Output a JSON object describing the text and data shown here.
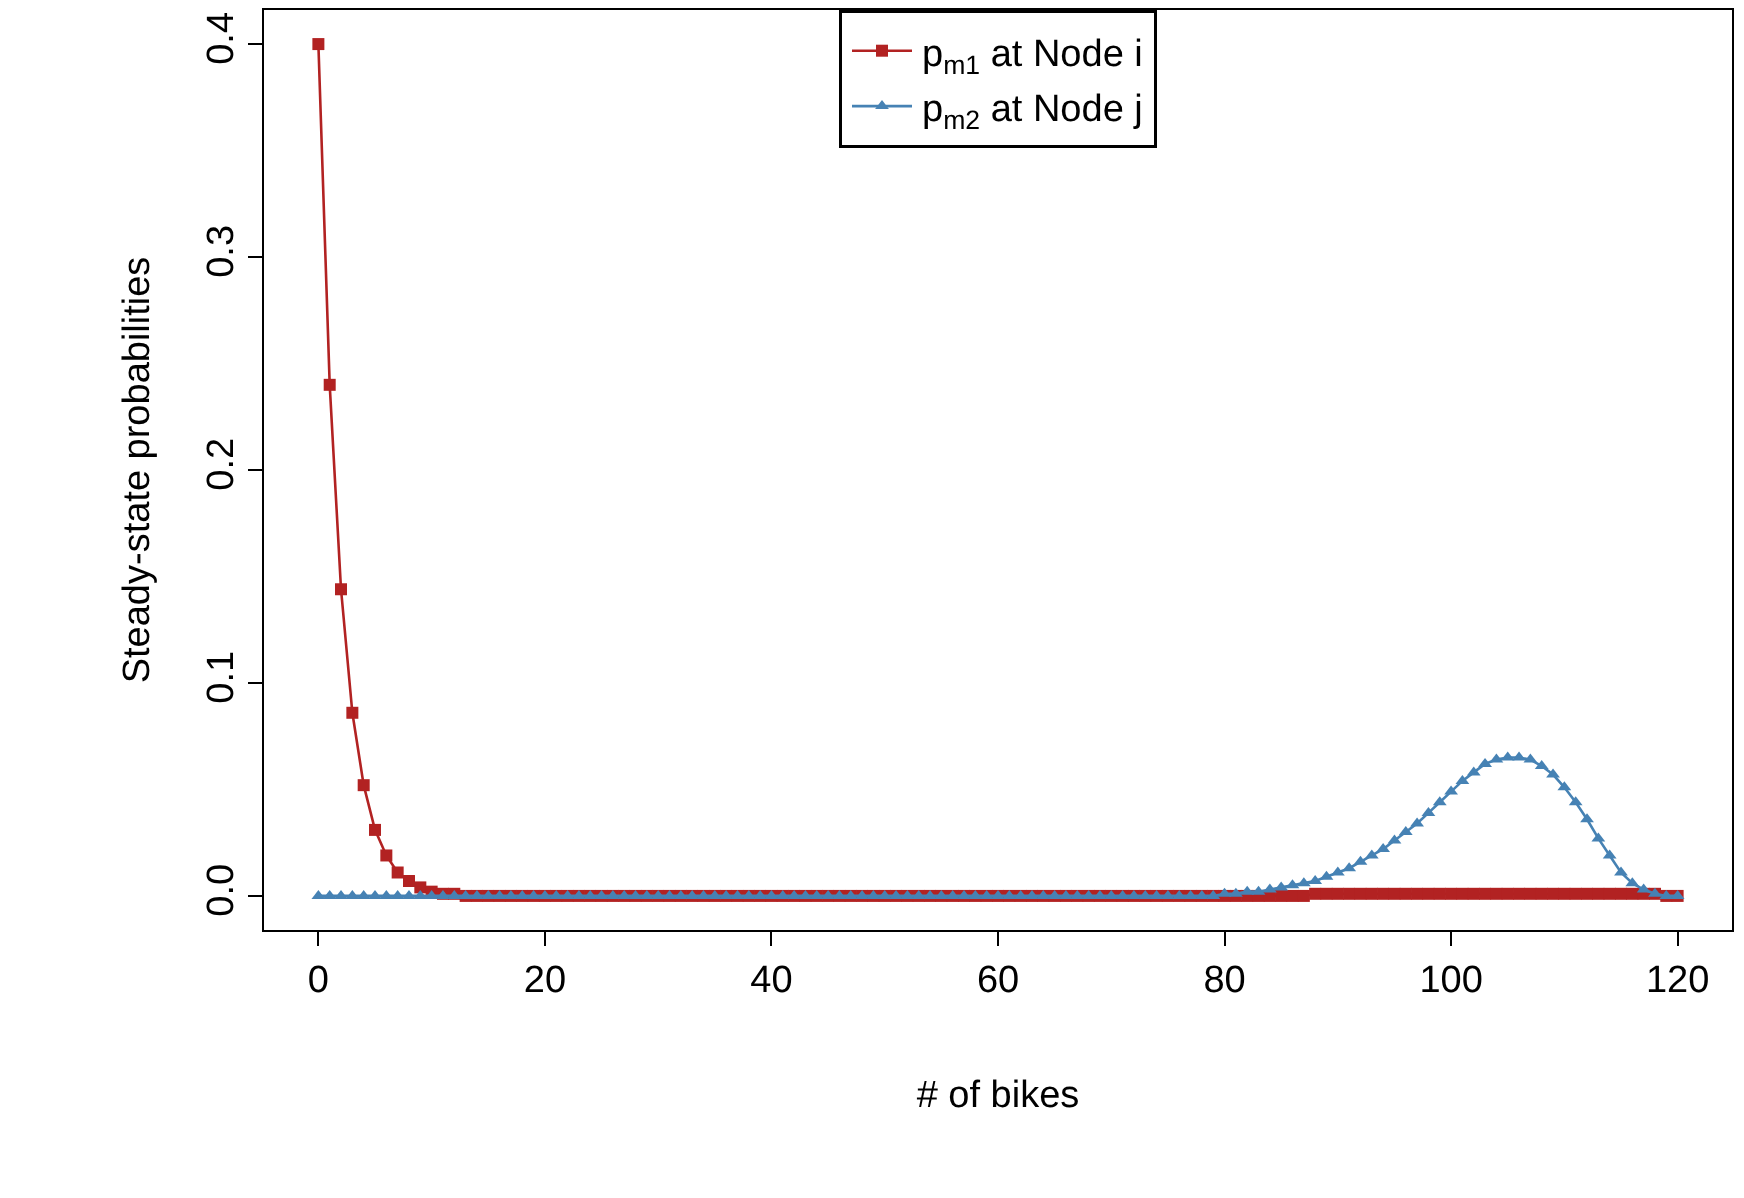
{
  "chart_data": {
    "type": "line",
    "xlabel": "# of bikes",
    "ylabel": "Steady-state probabilities",
    "x": [
      0,
      1,
      2,
      3,
      4,
      5,
      6,
      7,
      8,
      9,
      10,
      11,
      12,
      13,
      14,
      15,
      16,
      17,
      18,
      19,
      20,
      21,
      22,
      23,
      24,
      25,
      26,
      27,
      28,
      29,
      30,
      31,
      32,
      33,
      34,
      35,
      36,
      37,
      38,
      39,
      40,
      41,
      42,
      43,
      44,
      45,
      46,
      47,
      48,
      49,
      50,
      51,
      52,
      53,
      54,
      55,
      56,
      57,
      58,
      59,
      60,
      61,
      62,
      63,
      64,
      65,
      66,
      67,
      68,
      69,
      70,
      71,
      72,
      73,
      74,
      75,
      76,
      77,
      78,
      79,
      80,
      81,
      82,
      83,
      84,
      85,
      86,
      87,
      88,
      89,
      90,
      91,
      92,
      93,
      94,
      95,
      96,
      97,
      98,
      99,
      100,
      101,
      102,
      103,
      104,
      105,
      106,
      107,
      108,
      109,
      110,
      111,
      112,
      113,
      114,
      115,
      116,
      117,
      118,
      119,
      120
    ],
    "series": [
      {
        "name": "p$_{m1}$ at Node i",
        "color": "#b22222",
        "marker": "square",
        "values": [
          0.4,
          0.24,
          0.144,
          0.086,
          0.052,
          0.031,
          0.019,
          0.011,
          0.007,
          0.004,
          0.002,
          0.001,
          0.001,
          0,
          0,
          0,
          0,
          0,
          0,
          0,
          0,
          0,
          0,
          0,
          0,
          0,
          0,
          0,
          0,
          0,
          0,
          0,
          0,
          0,
          0,
          0,
          0,
          0,
          0,
          0,
          0,
          0,
          0,
          0,
          0,
          0,
          0,
          0,
          0,
          0,
          0,
          0,
          0,
          0,
          0,
          0,
          0,
          0,
          0,
          0,
          0,
          0,
          0,
          0,
          0,
          0,
          0,
          0,
          0,
          0,
          0,
          0,
          0,
          0,
          0,
          0,
          0,
          0,
          0,
          0,
          0,
          0,
          0,
          0,
          0,
          0,
          0,
          0,
          0.001,
          0.001,
          0.001,
          0.001,
          0.001,
          0.001,
          0.001,
          0.001,
          0.001,
          0.001,
          0.001,
          0.001,
          0.001,
          0.001,
          0.001,
          0.001,
          0.001,
          0.001,
          0.001,
          0.001,
          0.001,
          0.001,
          0.001,
          0.001,
          0.001,
          0.001,
          0.001,
          0.001,
          0.001,
          0.001,
          0.001,
          0,
          0
        ]
      },
      {
        "name": "p$_{m2}$ at Node j",
        "color": "#4682b4",
        "marker": "triangle",
        "values": [
          0,
          0,
          0,
          0,
          0,
          0,
          0,
          0,
          0,
          0,
          0,
          0,
          0,
          0,
          0,
          0,
          0,
          0,
          0,
          0,
          0,
          0,
          0,
          0,
          0,
          0,
          0,
          0,
          0,
          0,
          0,
          0,
          0,
          0,
          0,
          0,
          0,
          0,
          0,
          0,
          0,
          0,
          0,
          0,
          0,
          0,
          0,
          0,
          0,
          0,
          0,
          0,
          0,
          0,
          0,
          0,
          0,
          0,
          0,
          0,
          0,
          0,
          0,
          0,
          0,
          0,
          0,
          0,
          0,
          0,
          0,
          0,
          0,
          0,
          0,
          0,
          0,
          0,
          0,
          0,
          0.001,
          0.001,
          0.002,
          0.002,
          0.003,
          0.004,
          0.005,
          0.006,
          0.007,
          0.009,
          0.011,
          0.013,
          0.016,
          0.019,
          0.022,
          0.026,
          0.03,
          0.034,
          0.039,
          0.044,
          0.049,
          0.054,
          0.058,
          0.062,
          0.064,
          0.065,
          0.065,
          0.064,
          0.061,
          0.057,
          0.051,
          0.044,
          0.036,
          0.027,
          0.019,
          0.011,
          0.006,
          0.003,
          0.001,
          0,
          0
        ]
      }
    ],
    "xlim": [
      -4.8,
      124.8
    ],
    "xticks": [
      0,
      20,
      40,
      60,
      80,
      100,
      120
    ],
    "ylim": [
      -0.016,
      0.416
    ],
    "yticks": [
      {
        "value": 0.0,
        "label": "0.0"
      },
      {
        "value": 0.1,
        "label": "0.1"
      },
      {
        "value": 0.2,
        "label": "0.2"
      },
      {
        "value": 0.3,
        "label": "0.3"
      },
      {
        "value": 0.4,
        "label": "0.4"
      }
    ],
    "legend": "top",
    "line_style": "solid"
  }
}
